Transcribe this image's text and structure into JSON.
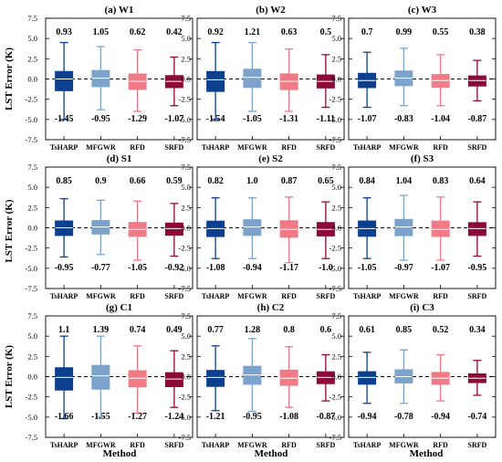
{
  "colors": {
    "TsHARP": "#0d3f8f",
    "MFGWR": "#7ba3cc",
    "RFD": "#f07a85",
    "SRFD": "#8c0a38",
    "zero_line": "#000000"
  },
  "figure": {
    "y_axis_label": "LST Error (K)",
    "x_axis_label": "Method"
  },
  "chart_data": [
    {
      "type": "boxplot",
      "title": "(a) W1",
      "categories": [
        "TsHARP",
        "MFGWR",
        "RFD",
        "SRFD"
      ],
      "ylim": [
        -7.5,
        7.5
      ],
      "yticks": [
        -7.5,
        -5.0,
        -2.5,
        0.0,
        2.5,
        5.0,
        7.5
      ],
      "upper_labels": [
        "0.93",
        "1.05",
        "0.62",
        "0.42"
      ],
      "lower_labels": [
        "-1.45",
        "-0.95",
        "-1.29",
        "-1.07"
      ],
      "boxes": [
        {
          "whislo": -5.0,
          "q1": -1.45,
          "med": 0.0,
          "q3": 0.93,
          "whishi": 4.5
        },
        {
          "whislo": -3.8,
          "q1": -0.95,
          "med": 0.1,
          "q3": 1.05,
          "whishi": 4.0
        },
        {
          "whislo": -4.0,
          "q1": -1.29,
          "med": -0.3,
          "q3": 0.62,
          "whishi": 3.6
        },
        {
          "whislo": -3.3,
          "q1": -1.07,
          "med": -0.3,
          "q3": 0.42,
          "whishi": 2.7
        }
      ]
    },
    {
      "type": "boxplot",
      "title": "(b) W2",
      "categories": [
        "TsHARP",
        "MFGWR",
        "RFD",
        "SRFD"
      ],
      "ylim": [
        -7.5,
        7.5
      ],
      "yticks": [
        -7.5,
        -5.0,
        -2.5,
        0.0,
        2.5,
        5.0,
        7.5
      ],
      "upper_labels": [
        "0.92",
        "1.21",
        "0.63",
        "0.5"
      ],
      "lower_labels": [
        "-1.54",
        "-1.05",
        "-1.31",
        "-1.11"
      ],
      "boxes": [
        {
          "whislo": -5.0,
          "q1": -1.54,
          "med": -0.1,
          "q3": 0.92,
          "whishi": 4.5
        },
        {
          "whislo": -4.0,
          "q1": -1.05,
          "med": 0.2,
          "q3": 1.21,
          "whishi": 4.5
        },
        {
          "whislo": -4.0,
          "q1": -1.31,
          "med": -0.3,
          "q3": 0.63,
          "whishi": 3.7
        },
        {
          "whislo": -3.5,
          "q1": -1.11,
          "med": -0.3,
          "q3": 0.5,
          "whishi": 3.0
        }
      ]
    },
    {
      "type": "boxplot",
      "title": "(c) W3",
      "categories": [
        "TsHARP",
        "MFGWR",
        "RFD",
        "SRFD"
      ],
      "ylim": [
        -7.5,
        7.5
      ],
      "yticks": [
        -7.5,
        -5.0,
        -2.5,
        0.0,
        2.5,
        5.0,
        7.5
      ],
      "upper_labels": [
        "0.7",
        "0.99",
        "0.55",
        "0.38"
      ],
      "lower_labels": [
        "-1.07",
        "-0.83",
        "-1.04",
        "-0.87"
      ],
      "boxes": [
        {
          "whislo": -3.5,
          "q1": -1.07,
          "med": -0.2,
          "q3": 0.7,
          "whishi": 3.3
        },
        {
          "whislo": -3.3,
          "q1": -0.83,
          "med": 0.1,
          "q3": 0.99,
          "whishi": 3.8
        },
        {
          "whislo": -3.3,
          "q1": -1.04,
          "med": -0.2,
          "q3": 0.55,
          "whishi": 3.0
        },
        {
          "whislo": -2.7,
          "q1": -0.87,
          "med": -0.2,
          "q3": 0.38,
          "whishi": 2.3
        }
      ]
    },
    {
      "type": "boxplot",
      "title": "(d) S1",
      "categories": [
        "TsHARP",
        "MFGWR",
        "RFD",
        "SRFD"
      ],
      "ylim": [
        -7.5,
        7.5
      ],
      "yticks": [
        -7.5,
        -5.0,
        -2.5,
        0.0,
        2.5,
        5.0,
        7.5
      ],
      "upper_labels": [
        "0.85",
        "0.9",
        "0.66",
        "0.59"
      ],
      "lower_labels": [
        "-0.95",
        "-0.77",
        "-1.05",
        "-0.92"
      ],
      "boxes": [
        {
          "whislo": -3.6,
          "q1": -0.95,
          "med": 0.0,
          "q3": 0.85,
          "whishi": 3.6
        },
        {
          "whislo": -3.3,
          "q1": -0.77,
          "med": 0.1,
          "q3": 0.9,
          "whishi": 3.4
        },
        {
          "whislo": -4.0,
          "q1": -1.05,
          "med": -0.2,
          "q3": 0.66,
          "whishi": 3.3
        },
        {
          "whislo": -3.5,
          "q1": -0.92,
          "med": -0.1,
          "q3": 0.59,
          "whishi": 3.0
        }
      ]
    },
    {
      "type": "boxplot",
      "title": "(e) S2",
      "categories": [
        "TsHARP",
        "MFGWR",
        "RFD",
        "SRFD"
      ],
      "ylim": [
        -7.5,
        7.5
      ],
      "yticks": [
        -7.5,
        -5.0,
        -2.5,
        0.0,
        2.5,
        5.0,
        7.5
      ],
      "upper_labels": [
        "0.82",
        "1.0",
        "0.87",
        "0.65"
      ],
      "lower_labels": [
        "-1.08",
        "-0.94",
        "-1.17",
        "-1.0"
      ],
      "boxes": [
        {
          "whislo": -3.8,
          "q1": -1.08,
          "med": -0.1,
          "q3": 0.82,
          "whishi": 3.7
        },
        {
          "whislo": -3.8,
          "q1": -0.94,
          "med": 0.1,
          "q3": 1.0,
          "whishi": 3.7
        },
        {
          "whislo": -4.3,
          "q1": -1.17,
          "med": -0.2,
          "q3": 0.87,
          "whishi": 3.8
        },
        {
          "whislo": -3.8,
          "q1": -1.0,
          "med": -0.2,
          "q3": 0.65,
          "whishi": 3.2
        }
      ]
    },
    {
      "type": "boxplot",
      "title": "(f) S3",
      "categories": [
        "TsHARP",
        "MFGWR",
        "RFD",
        "SRFD"
      ],
      "ylim": [
        -7.5,
        7.5
      ],
      "yticks": [
        -7.5,
        -5.0,
        -2.5,
        0.0,
        2.5,
        5.0,
        7.5
      ],
      "upper_labels": [
        "0.84",
        "1.04",
        "0.83",
        "0.64"
      ],
      "lower_labels": [
        "-1.05",
        "-0.97",
        "-1.07",
        "-0.95"
      ],
      "boxes": [
        {
          "whislo": -3.8,
          "q1": -1.05,
          "med": -0.1,
          "q3": 0.84,
          "whishi": 3.7
        },
        {
          "whislo": -4.0,
          "q1": -0.97,
          "med": 0.1,
          "q3": 1.04,
          "whishi": 4.0
        },
        {
          "whislo": -4.0,
          "q1": -1.07,
          "med": -0.2,
          "q3": 0.83,
          "whishi": 3.8
        },
        {
          "whislo": -3.5,
          "q1": -0.95,
          "med": -0.1,
          "q3": 0.64,
          "whishi": 3.2
        }
      ]
    },
    {
      "type": "boxplot",
      "title": "(g) C1",
      "categories": [
        "TsHARP",
        "MFGWR",
        "RFD",
        "SRFD"
      ],
      "ylim": [
        -7.5,
        7.5
      ],
      "yticks": [
        -7.5,
        -5.0,
        -2.5,
        0.0,
        2.5,
        5.0,
        7.5
      ],
      "upper_labels": [
        "1.1",
        "1.39",
        "0.74",
        "0.49"
      ],
      "lower_labels": [
        "-1.66",
        "-1.55",
        "-1.27",
        "-1.24"
      ],
      "boxes": [
        {
          "whislo": -5.2,
          "q1": -1.66,
          "med": -0.1,
          "q3": 1.1,
          "whishi": 5.0
        },
        {
          "whislo": -5.0,
          "q1": -1.55,
          "med": 0.1,
          "q3": 1.39,
          "whishi": 5.0
        },
        {
          "whislo": -4.5,
          "q1": -1.27,
          "med": -0.2,
          "q3": 0.74,
          "whishi": 3.8
        },
        {
          "whislo": -3.8,
          "q1": -1.24,
          "med": -0.3,
          "q3": 0.49,
          "whishi": 3.2
        }
      ]
    },
    {
      "type": "boxplot",
      "title": "(h) C2",
      "categories": [
        "TsHARP",
        "MFGWR",
        "RFD",
        "SRFD"
      ],
      "ylim": [
        -7.5,
        7.5
      ],
      "yticks": [
        -7.5,
        -5.0,
        -2.5,
        0.0,
        2.5,
        5.0,
        7.5
      ],
      "upper_labels": [
        "0.77",
        "1.28",
        "0.8",
        "0.6"
      ],
      "lower_labels": [
        "-1.21",
        "-0.95",
        "-1.08",
        "-0.87"
      ],
      "boxes": [
        {
          "whislo": -4.2,
          "q1": -1.21,
          "med": -0.1,
          "q3": 0.77,
          "whishi": 3.8
        },
        {
          "whislo": -4.3,
          "q1": -0.95,
          "med": 0.2,
          "q3": 1.28,
          "whishi": 4.7
        },
        {
          "whislo": -3.8,
          "q1": -1.08,
          "med": -0.2,
          "q3": 0.8,
          "whishi": 3.7
        },
        {
          "whislo": -3.0,
          "q1": -0.87,
          "med": -0.1,
          "q3": 0.6,
          "whishi": 2.7
        }
      ]
    },
    {
      "type": "boxplot",
      "title": "(i) C3",
      "categories": [
        "TsHARP",
        "MFGWR",
        "RFD",
        "SRFD"
      ],
      "ylim": [
        -7.5,
        7.5
      ],
      "yticks": [
        -7.5,
        -5.0,
        -2.5,
        0.0,
        2.5,
        5.0,
        7.5
      ],
      "upper_labels": [
        "0.61",
        "0.85",
        "0.52",
        "0.34"
      ],
      "lower_labels": [
        "-0.94",
        "-0.78",
        "-0.94",
        "-0.74"
      ],
      "boxes": [
        {
          "whislo": -3.3,
          "q1": -0.94,
          "med": -0.1,
          "q3": 0.61,
          "whishi": 3.0
        },
        {
          "whislo": -3.3,
          "q1": -0.78,
          "med": 0.0,
          "q3": 0.85,
          "whishi": 3.3
        },
        {
          "whislo": -3.0,
          "q1": -0.94,
          "med": -0.2,
          "q3": 0.52,
          "whishi": 2.7
        },
        {
          "whislo": -2.3,
          "q1": -0.74,
          "med": -0.2,
          "q3": 0.34,
          "whishi": 2.0
        }
      ]
    }
  ]
}
